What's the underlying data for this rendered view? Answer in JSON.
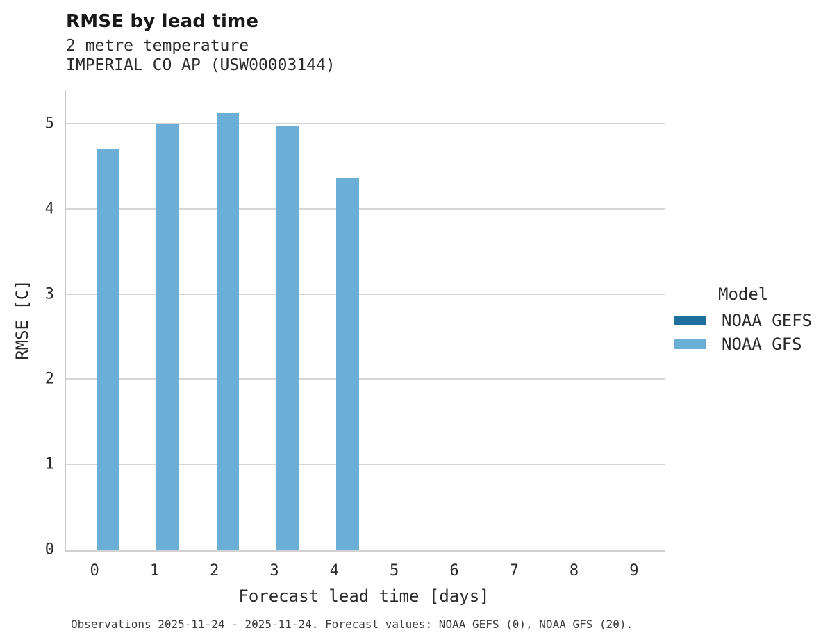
{
  "header": {
    "title": "RMSE by lead time",
    "subtitle_line1": "2 metre temperature",
    "subtitle_line2": "IMPERIAL CO AP (USW00003144)"
  },
  "footer": {
    "text": "Observations 2025-11-24 - 2025-11-24. Forecast values: NOAA GEFS (0), NOAA GFS (20)."
  },
  "colors": {
    "gefs": "#1e6e9e",
    "gfs": "#6cafd6",
    "gridline": "#d6d6d6",
    "axis_line": "#d0d0d0",
    "text": "#2a2a2a"
  },
  "chart_data": {
    "type": "bar",
    "title": "RMSE by lead time",
    "subtitle": [
      "2 metre temperature",
      "IMPERIAL CO AP (USW00003144)"
    ],
    "xlabel": "Forecast lead time [days]",
    "ylabel": "RMSE [C]",
    "categories": [
      0,
      1,
      2,
      3,
      4,
      5,
      6,
      7,
      8,
      9
    ],
    "series": [
      {
        "name": "NOAA GEFS",
        "color": "#1e6e9e",
        "values": [
          null,
          null,
          null,
          null,
          null,
          null,
          null,
          null,
          null,
          null
        ]
      },
      {
        "name": "NOAA GFS",
        "color": "#6cafd6",
        "values": [
          4.71,
          4.99,
          5.12,
          4.97,
          4.36,
          null,
          null,
          null,
          null,
          null
        ]
      }
    ],
    "ylim": [
      0,
      5.39
    ],
    "yticks": [
      0,
      1,
      2,
      3,
      4,
      5
    ],
    "legend_title": "Model",
    "legend_position": "right",
    "grid": "horizontal"
  }
}
